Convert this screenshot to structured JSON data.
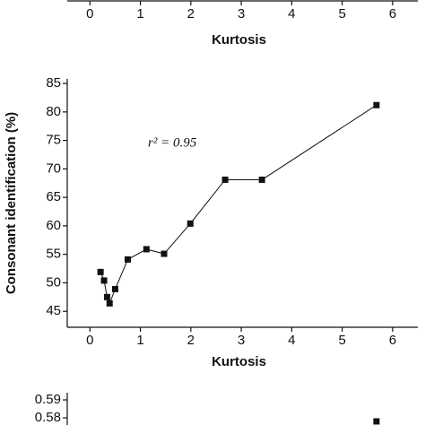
{
  "chart_data": [
    {
      "type": "line",
      "xlim": [
        -0.45,
        6.5
      ],
      "xticks": [
        0,
        1,
        2,
        3,
        4,
        5,
        6
      ],
      "xlabel": "Kurtosis"
    },
    {
      "type": "line",
      "xlabel": "Kurtosis",
      "ylabel": "Consonant identification (%)",
      "annotation": "r² = 0.95",
      "xlim": [
        -0.45,
        6.5
      ],
      "xticks": [
        0,
        1,
        2,
        3,
        4,
        5,
        6
      ],
      "ylim": [
        42.2,
        85.8
      ],
      "yticks": [
        45,
        50,
        55,
        60,
        65,
        70,
        75,
        80,
        85
      ],
      "series": [
        {
          "color": "#111111",
          "x": [
            0.21,
            0.28,
            0.34,
            0.39,
            0.5,
            0.75,
            1.12,
            1.47,
            1.99,
            2.68,
            3.41,
            5.68
          ],
          "values": [
            51.9,
            50.4,
            47.5,
            46.4,
            48.9,
            54.1,
            55.9,
            55.1,
            60.4,
            68.1,
            68.1,
            81.2
          ]
        }
      ]
    },
    {
      "type": "line",
      "xlim": [
        -0.45,
        6.5
      ],
      "ylim": [
        0.576,
        0.594
      ],
      "yticks": [
        0.58,
        0.59
      ],
      "series": [
        {
          "color": "#111111",
          "x": [
            5.68
          ],
          "values": [
            0.578
          ]
        }
      ]
    }
  ]
}
